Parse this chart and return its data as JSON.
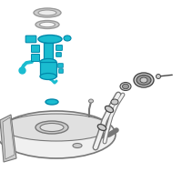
{
  "bg_color": "#ffffff",
  "highlight_color": "#1abcd0",
  "pump_edge": "#0088aa",
  "line_color": "#666666",
  "dark_color": "#444444",
  "gray_color": "#999999",
  "light_gray": "#cccccc",
  "tank_fill": "#f0f0f0",
  "tank_stroke": "#777777",
  "tank_inner": "#e0e0e0"
}
